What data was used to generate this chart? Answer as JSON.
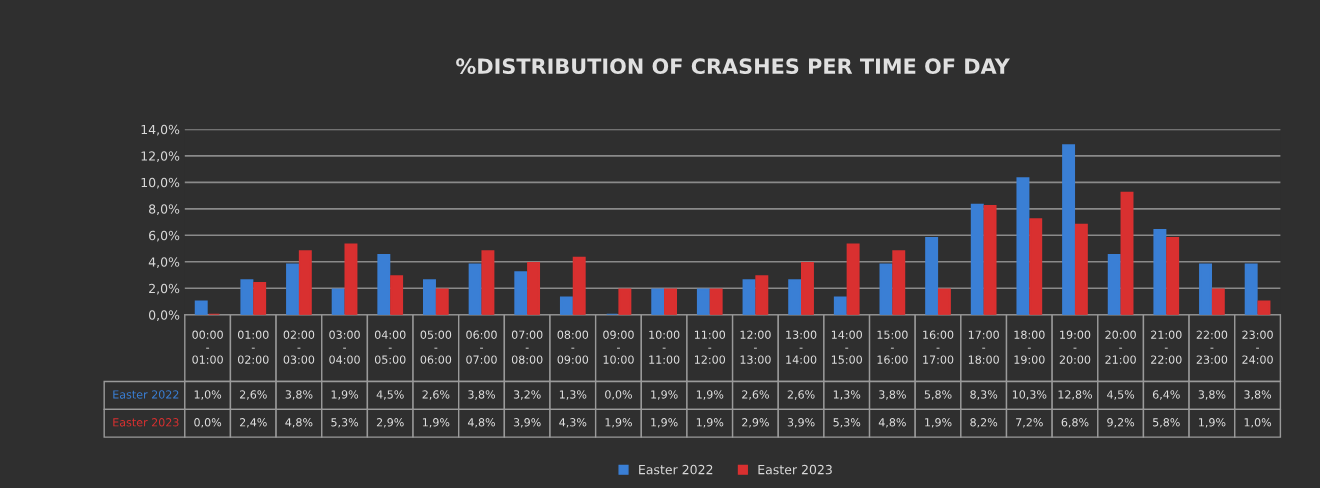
{
  "chart_data": {
    "type": "bar",
    "title": "%DISTRIBUTION OF CRASHES PER TIME OF DAY",
    "categories": [
      "00:00\n-\n01:00",
      "01:00\n-\n02:00",
      "02:00\n-\n03:00",
      "03:00\n-\n04:00",
      "04:00\n-\n05:00",
      "05:00\n-\n06:00",
      "06:00\n-\n07:00",
      "07:00\n-\n08:00",
      "08:00\n-\n09:00",
      "09:00\n-\n10:00",
      "10:00\n-\n11:00",
      "11:00\n-\n12:00",
      "12:00\n-\n13:00",
      "13:00\n-\n14:00",
      "14:00\n-\n15:00",
      "15:00\n-\n16:00",
      "16:00\n-\n17:00",
      "17:00\n-\n18:00",
      "18:00\n-\n19:00",
      "19:00\n-\n20:00",
      "20:00\n-\n21:00",
      "21:00\n-\n22:00",
      "22:00\n-\n23:00",
      "23:00\n-\n24:00"
    ],
    "series": [
      {
        "name": "Easter 2022",
        "color": "#3a7fd5",
        "values": [
          1.0,
          2.6,
          3.8,
          1.9,
          4.5,
          2.6,
          3.8,
          3.2,
          1.3,
          0.0,
          1.9,
          1.9,
          2.6,
          2.6,
          1.3,
          3.8,
          5.8,
          8.3,
          10.3,
          12.8,
          4.5,
          6.4,
          3.8,
          3.8
        ],
        "value_labels": [
          "1,0%",
          "2,6%",
          "3,8%",
          "1,9%",
          "4,5%",
          "2,6%",
          "3,8%",
          "3,2%",
          "1,3%",
          "0,0%",
          "1,9%",
          "1,9%",
          "2,6%",
          "2,6%",
          "1,3%",
          "3,8%",
          "5,8%",
          "8,3%",
          "10,3%",
          "12,8%",
          "4,5%",
          "6,4%",
          "3,8%",
          "3,8%"
        ]
      },
      {
        "name": "Easter 2023",
        "color": "#d93030",
        "values": [
          0.0,
          2.4,
          4.8,
          5.3,
          2.9,
          1.9,
          4.8,
          3.9,
          4.3,
          1.9,
          1.9,
          1.9,
          2.9,
          3.9,
          5.3,
          4.8,
          1.9,
          8.2,
          7.2,
          6.8,
          9.2,
          5.8,
          1.9,
          1.0
        ],
        "value_labels": [
          "0,0%",
          "2,4%",
          "4,8%",
          "5,3%",
          "2,9%",
          "1,9%",
          "4,8%",
          "3,9%",
          "4,3%",
          "1,9%",
          "1,9%",
          "1,9%",
          "2,9%",
          "3,9%",
          "5,3%",
          "4,8%",
          "1,9%",
          "8,2%",
          "7,2%",
          "6,8%",
          "9,2%",
          "5,8%",
          "1,9%",
          "1,0%"
        ]
      }
    ],
    "ylim": [
      0,
      14
    ],
    "yticks": [
      {
        "value": 0,
        "label": "0,0%"
      },
      {
        "value": 2,
        "label": "2,0%"
      },
      {
        "value": 4,
        "label": "4,0%"
      },
      {
        "value": 6,
        "label": "6,0%"
      },
      {
        "value": 8,
        "label": "8,0%"
      },
      {
        "value": 10,
        "label": "10,0%"
      },
      {
        "value": 12,
        "label": "12,0%"
      },
      {
        "value": 14,
        "label": "14,0%"
      }
    ],
    "grid": "y",
    "legend": "bottom"
  }
}
